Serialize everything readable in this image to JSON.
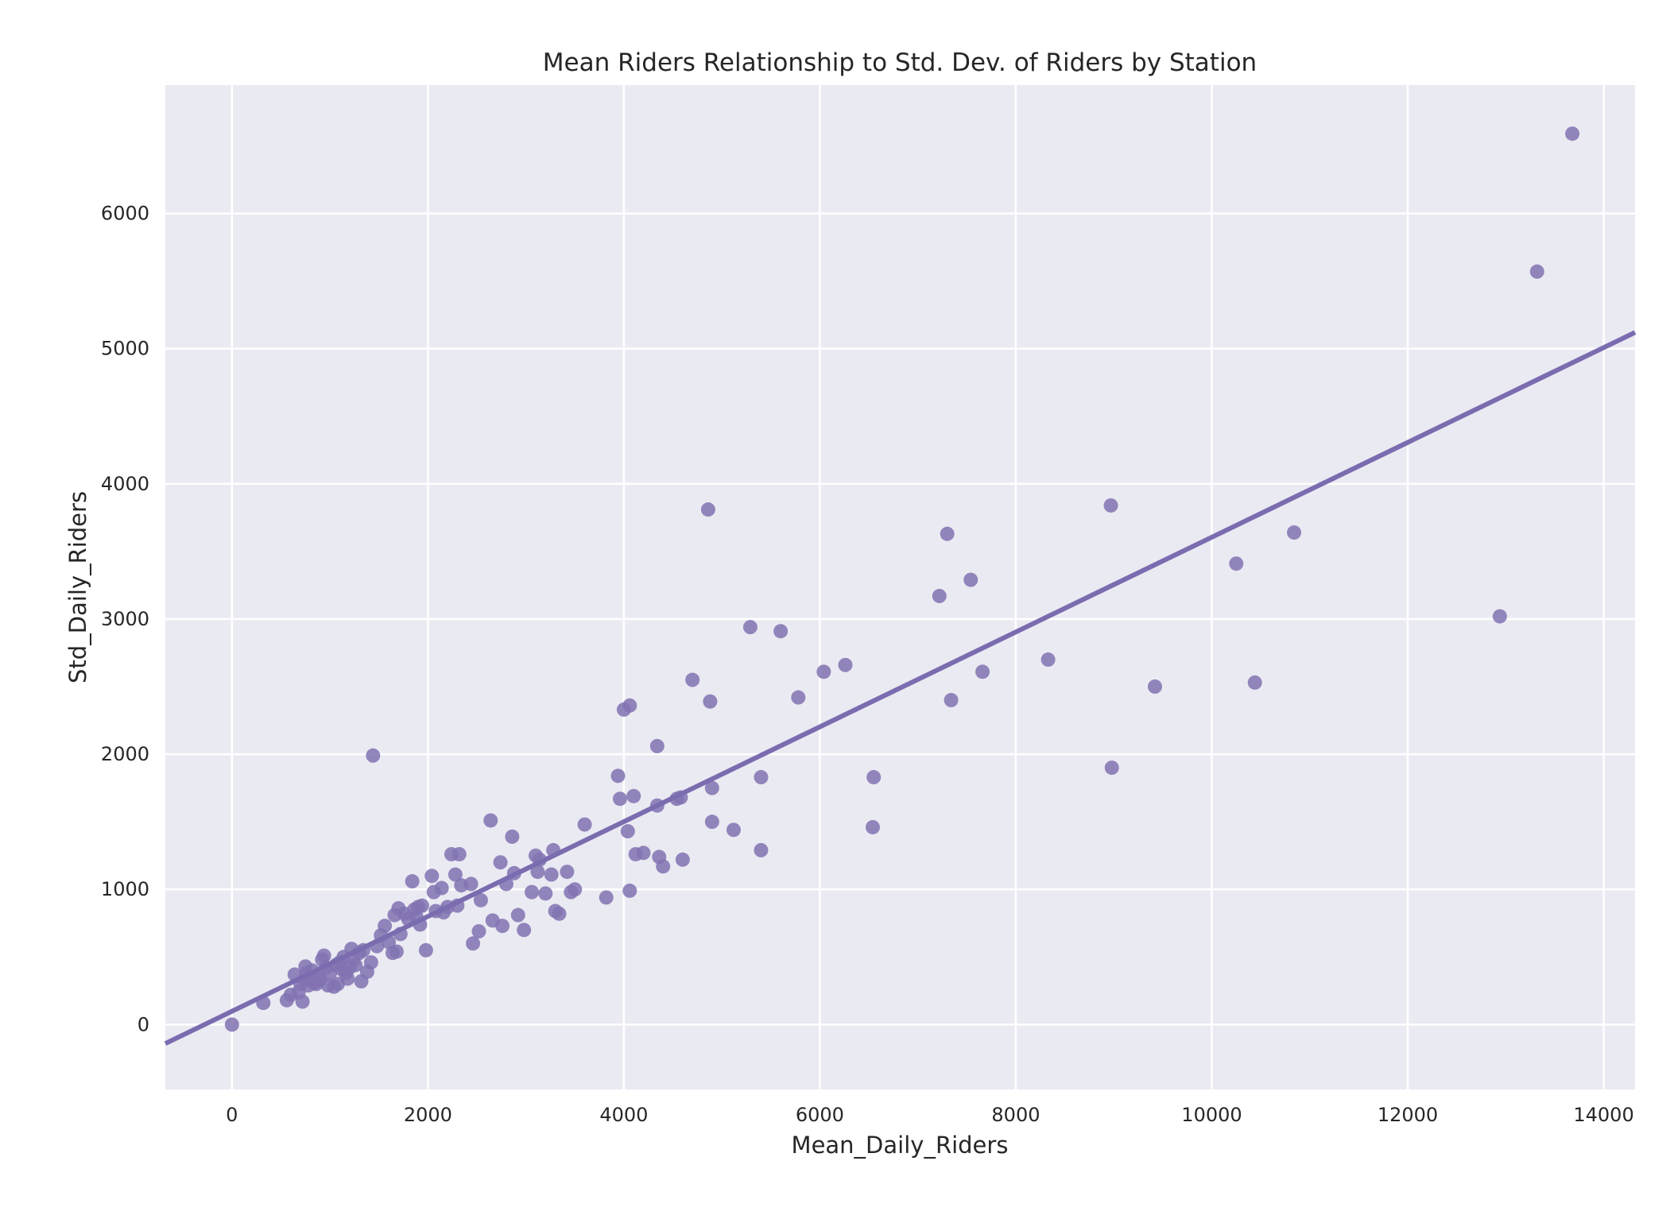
{
  "colors": {
    "plot_background": "#eaeaf2",
    "grid": "#ffffff",
    "marker": "#8172b2",
    "regression_line": "#7b6cb0",
    "text": "#262626"
  },
  "chart_data": {
    "type": "scatter",
    "title": "Mean Riders Relationship to Std. Dev. of Riders by Station",
    "xlabel": "Mean_Daily_Riders",
    "ylabel": "Std_Daily_Riders",
    "xlim": [
      -680,
      14320
    ],
    "ylim": [
      -480,
      6950
    ],
    "x_ticks": [
      0,
      2000,
      4000,
      6000,
      8000,
      10000,
      12000,
      14000
    ],
    "y_ticks": [
      0,
      1000,
      2000,
      3000,
      4000,
      5000,
      6000
    ],
    "grid": true,
    "legend": "none",
    "regression_line": {
      "x": [
        -680,
        14320
      ],
      "y": [
        -140,
        5120
      ]
    },
    "series": [
      {
        "points": [
          [
            0,
            0
          ],
          [
            320,
            160
          ],
          [
            560,
            180
          ],
          [
            600,
            220
          ],
          [
            640,
            370
          ],
          [
            680,
            240
          ],
          [
            700,
            300
          ],
          [
            720,
            170
          ],
          [
            740,
            330
          ],
          [
            750,
            430
          ],
          [
            760,
            380
          ],
          [
            780,
            290
          ],
          [
            800,
            350
          ],
          [
            820,
            400
          ],
          [
            840,
            310
          ],
          [
            860,
            300
          ],
          [
            880,
            360
          ],
          [
            900,
            330
          ],
          [
            920,
            480
          ],
          [
            940,
            510
          ],
          [
            960,
            420
          ],
          [
            980,
            290
          ],
          [
            1000,
            380
          ],
          [
            1040,
            280
          ],
          [
            1060,
            440
          ],
          [
            1080,
            300
          ],
          [
            1100,
            460
          ],
          [
            1120,
            410
          ],
          [
            1140,
            500
          ],
          [
            1160,
            380
          ],
          [
            1180,
            340
          ],
          [
            1200,
            420
          ],
          [
            1220,
            560
          ],
          [
            1240,
            480
          ],
          [
            1260,
            440
          ],
          [
            1300,
            530
          ],
          [
            1320,
            320
          ],
          [
            1340,
            550
          ],
          [
            1380,
            390
          ],
          [
            1420,
            460
          ],
          [
            1440,
            1990
          ],
          [
            1480,
            580
          ],
          [
            1520,
            660
          ],
          [
            1560,
            730
          ],
          [
            1600,
            610
          ],
          [
            1640,
            530
          ],
          [
            1660,
            810
          ],
          [
            1680,
            540
          ],
          [
            1700,
            860
          ],
          [
            1720,
            670
          ],
          [
            1760,
            820
          ],
          [
            1800,
            780
          ],
          [
            1840,
            1060
          ],
          [
            1860,
            850
          ],
          [
            1880,
            800
          ],
          [
            1900,
            870
          ],
          [
            1920,
            740
          ],
          [
            1940,
            880
          ],
          [
            1980,
            550
          ],
          [
            2040,
            1100
          ],
          [
            2060,
            980
          ],
          [
            2080,
            840
          ],
          [
            2140,
            1010
          ],
          [
            2160,
            830
          ],
          [
            2200,
            870
          ],
          [
            2240,
            1260
          ],
          [
            2280,
            1110
          ],
          [
            2300,
            880
          ],
          [
            2320,
            1260
          ],
          [
            2340,
            1030
          ],
          [
            2440,
            1040
          ],
          [
            2460,
            600
          ],
          [
            2520,
            690
          ],
          [
            2540,
            920
          ],
          [
            2640,
            1510
          ],
          [
            2660,
            770
          ],
          [
            2740,
            1200
          ],
          [
            2760,
            730
          ],
          [
            2800,
            1040
          ],
          [
            2860,
            1390
          ],
          [
            2880,
            1120
          ],
          [
            2920,
            810
          ],
          [
            2980,
            700
          ],
          [
            3060,
            980
          ],
          [
            3100,
            1250
          ],
          [
            3120,
            1130
          ],
          [
            3140,
            1220
          ],
          [
            3200,
            970
          ],
          [
            3260,
            1110
          ],
          [
            3280,
            1290
          ],
          [
            3300,
            840
          ],
          [
            3340,
            820
          ],
          [
            3420,
            1130
          ],
          [
            3460,
            980
          ],
          [
            3500,
            1000
          ],
          [
            3600,
            1480
          ],
          [
            3820,
            940
          ],
          [
            3940,
            1840
          ],
          [
            3960,
            1670
          ],
          [
            4000,
            2330
          ],
          [
            4040,
            1430
          ],
          [
            4060,
            990
          ],
          [
            4060,
            2360
          ],
          [
            4100,
            1690
          ],
          [
            4120,
            1260
          ],
          [
            4200,
            1270
          ],
          [
            4340,
            2060
          ],
          [
            4340,
            1620
          ],
          [
            4360,
            1240
          ],
          [
            4400,
            1170
          ],
          [
            4540,
            1670
          ],
          [
            4580,
            1680
          ],
          [
            4600,
            1220
          ],
          [
            4700,
            2550
          ],
          [
            4860,
            3810
          ],
          [
            4880,
            2390
          ],
          [
            4900,
            1750
          ],
          [
            4900,
            1500
          ],
          [
            5120,
            1440
          ],
          [
            5290,
            2940
          ],
          [
            5400,
            1830
          ],
          [
            5400,
            1290
          ],
          [
            5600,
            2910
          ],
          [
            5780,
            2420
          ],
          [
            6040,
            2610
          ],
          [
            6260,
            2660
          ],
          [
            6540,
            1460
          ],
          [
            6550,
            1830
          ],
          [
            7220,
            3170
          ],
          [
            7300,
            3630
          ],
          [
            7340,
            2400
          ],
          [
            7540,
            3290
          ],
          [
            7660,
            2610
          ],
          [
            8330,
            2700
          ],
          [
            8970,
            3840
          ],
          [
            8980,
            1900
          ],
          [
            9420,
            2500
          ],
          [
            10250,
            3410
          ],
          [
            10440,
            2530
          ],
          [
            10840,
            3640
          ],
          [
            12940,
            3020
          ],
          [
            13320,
            5570
          ],
          [
            13680,
            6590
          ]
        ]
      }
    ]
  }
}
